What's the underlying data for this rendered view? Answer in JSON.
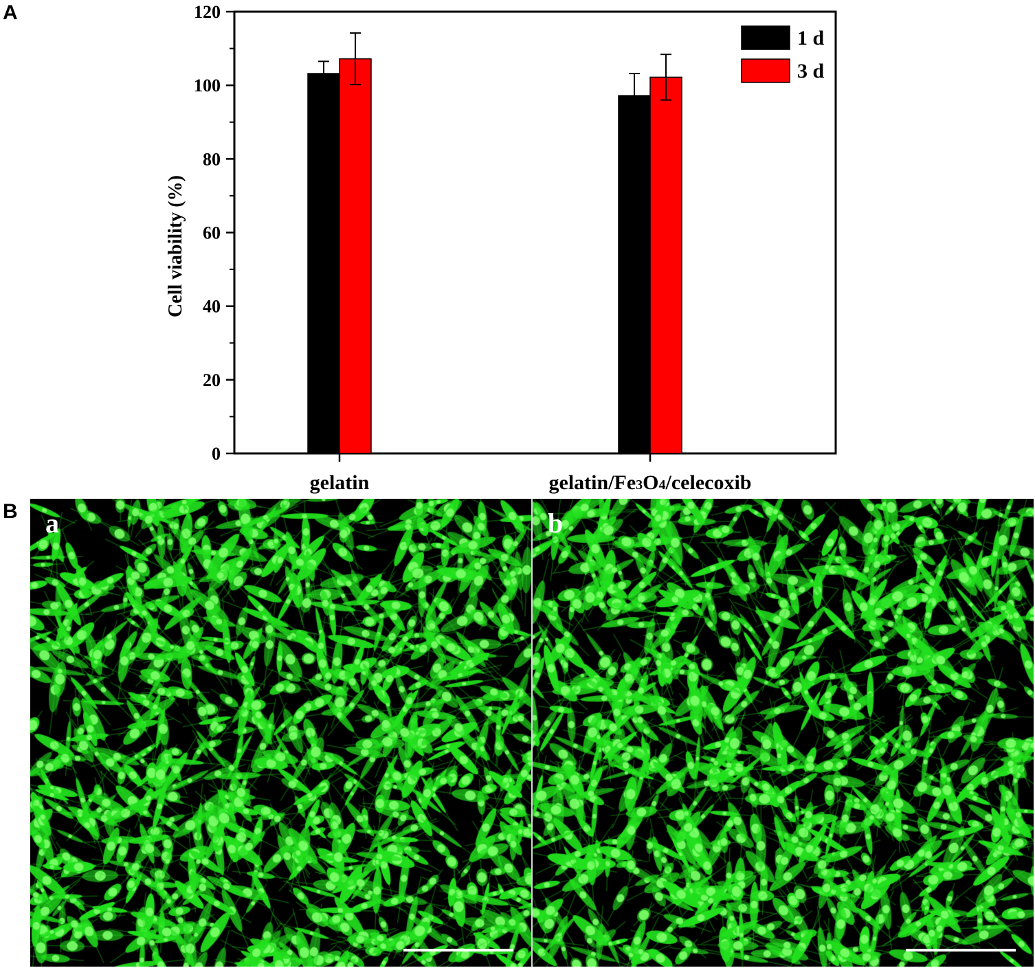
{
  "panels": {
    "a_label": "A",
    "b_label": "B"
  },
  "chart_data": {
    "type": "bar",
    "categories": [
      "gelatin",
      "gelatin/Fe3O4/celecoxib"
    ],
    "category_display": [
      [
        {
          "t": "gelatin",
          "sub": false
        }
      ],
      [
        {
          "t": "gelatin/Fe",
          "sub": false
        },
        {
          "t": "3",
          "sub": true
        },
        {
          "t": "O",
          "sub": false
        },
        {
          "t": "4",
          "sub": true
        },
        {
          "t": "/celecoxib",
          "sub": false
        }
      ]
    ],
    "series": [
      {
        "name": "1 d",
        "color": "#000000",
        "values": [
          103.2,
          97.2
        ],
        "errors": [
          3.3,
          6.0
        ]
      },
      {
        "name": "3 d",
        "color": "#ff0000",
        "values": [
          107.2,
          102.2
        ],
        "errors": [
          7.0,
          6.2
        ]
      }
    ],
    "xlabel": "",
    "ylabel": "Cell viability (%)",
    "ylim": [
      0,
      120
    ],
    "yticks": [
      "0",
      "20",
      "40",
      "60",
      "80",
      "100",
      "120"
    ],
    "grid": false,
    "legend_position": "top-right"
  },
  "micrographs": [
    {
      "label": "a",
      "color": "#22e01e"
    },
    {
      "label": "b",
      "color": "#22e01e"
    }
  ]
}
